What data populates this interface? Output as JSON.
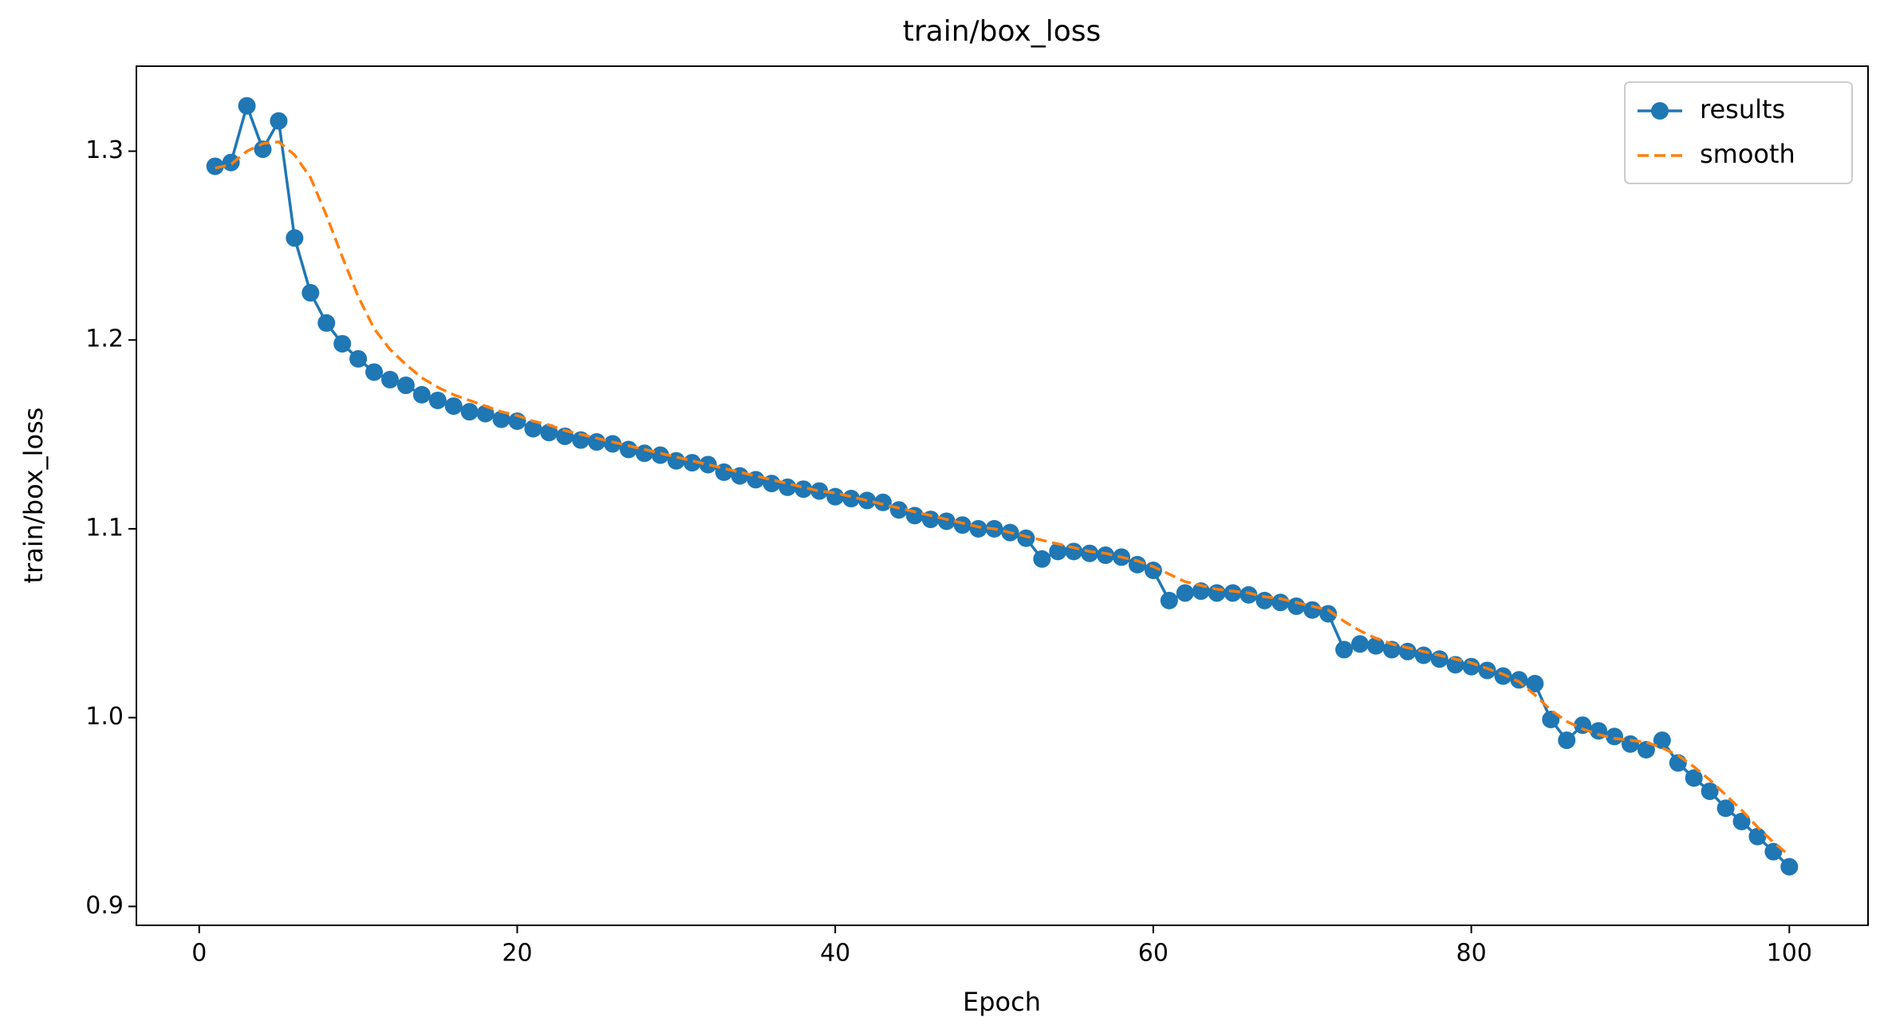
{
  "chart_data": {
    "type": "line",
    "title": "train/box_loss",
    "xlabel": "Epoch",
    "ylabel": "train/box_loss",
    "x": [
      1,
      2,
      3,
      4,
      5,
      6,
      7,
      8,
      9,
      10,
      11,
      12,
      13,
      14,
      15,
      16,
      17,
      18,
      19,
      20,
      21,
      22,
      23,
      24,
      25,
      26,
      27,
      28,
      29,
      30,
      31,
      32,
      33,
      34,
      35,
      36,
      37,
      38,
      39,
      40,
      41,
      42,
      43,
      44,
      45,
      46,
      47,
      48,
      49,
      50,
      51,
      52,
      53,
      54,
      55,
      56,
      57,
      58,
      59,
      60,
      61,
      62,
      63,
      64,
      65,
      66,
      67,
      68,
      69,
      70,
      71,
      72,
      73,
      74,
      75,
      76,
      77,
      78,
      79,
      80,
      81,
      82,
      83,
      84,
      85,
      86,
      87,
      88,
      89,
      90,
      91,
      92,
      93,
      94,
      95,
      96,
      97,
      98,
      99,
      100
    ],
    "series": [
      {
        "name": "results",
        "color": "#1f77b4",
        "linestyle": "solid",
        "marker": "o",
        "values": [
          1.292,
          1.294,
          1.324,
          1.301,
          1.316,
          1.254,
          1.225,
          1.209,
          1.198,
          1.19,
          1.183,
          1.179,
          1.176,
          1.171,
          1.168,
          1.165,
          1.162,
          1.161,
          1.158,
          1.157,
          1.153,
          1.151,
          1.149,
          1.147,
          1.146,
          1.145,
          1.142,
          1.14,
          1.139,
          1.136,
          1.135,
          1.134,
          1.13,
          1.128,
          1.126,
          1.124,
          1.122,
          1.121,
          1.12,
          1.117,
          1.116,
          1.115,
          1.114,
          1.11,
          1.107,
          1.105,
          1.104,
          1.102,
          1.1,
          1.1,
          1.098,
          1.095,
          1.084,
          1.088,
          1.088,
          1.087,
          1.086,
          1.085,
          1.081,
          1.078,
          1.062,
          1.066,
          1.067,
          1.066,
          1.066,
          1.065,
          1.062,
          1.061,
          1.059,
          1.057,
          1.055,
          1.036,
          1.039,
          1.038,
          1.036,
          1.035,
          1.033,
          1.031,
          1.028,
          1.027,
          1.025,
          1.022,
          1.02,
          1.018,
          0.999,
          0.988,
          0.996,
          0.993,
          0.99,
          0.986,
          0.983,
          0.988,
          0.976,
          0.968,
          0.961,
          0.952,
          0.945,
          0.937,
          0.929,
          0.921
        ]
      },
      {
        "name": "smooth",
        "color": "#ff7f0e",
        "linestyle": "dashed",
        "marker": null,
        "values": [
          1.291,
          1.293,
          1.3,
          1.304,
          1.305,
          1.298,
          1.286,
          1.266,
          1.244,
          1.223,
          1.206,
          1.195,
          1.187,
          1.18,
          1.175,
          1.171,
          1.168,
          1.165,
          1.162,
          1.16,
          1.157,
          1.155,
          1.152,
          1.15,
          1.148,
          1.146,
          1.144,
          1.142,
          1.14,
          1.138,
          1.136,
          1.134,
          1.132,
          1.13,
          1.128,
          1.126,
          1.124,
          1.122,
          1.12,
          1.119,
          1.117,
          1.115,
          1.113,
          1.111,
          1.109,
          1.107,
          1.105,
          1.103,
          1.101,
          1.1,
          1.098,
          1.096,
          1.094,
          1.092,
          1.09,
          1.088,
          1.087,
          1.085,
          1.083,
          1.08,
          1.076,
          1.072,
          1.07,
          1.068,
          1.067,
          1.066,
          1.064,
          1.063,
          1.061,
          1.059,
          1.057,
          1.051,
          1.046,
          1.042,
          1.039,
          1.037,
          1.035,
          1.033,
          1.031,
          1.029,
          1.026,
          1.023,
          1.019,
          1.012,
          1.004,
          0.998,
          0.994,
          0.991,
          0.989,
          0.988,
          0.987,
          0.984,
          0.98,
          0.974,
          0.967,
          0.959,
          0.951,
          0.942,
          0.934,
          0.927
        ]
      }
    ],
    "xlim": [
      -3.95,
      104.95
    ],
    "xticks": [
      0,
      20,
      40,
      60,
      80,
      100
    ],
    "ylim": [
      0.89,
      1.345
    ],
    "yticks": [
      0.9,
      {
        "value": 1,
        "label": "1.0"
      },
      1.1,
      1.2,
      1.3
    ],
    "legend": "upper right"
  }
}
